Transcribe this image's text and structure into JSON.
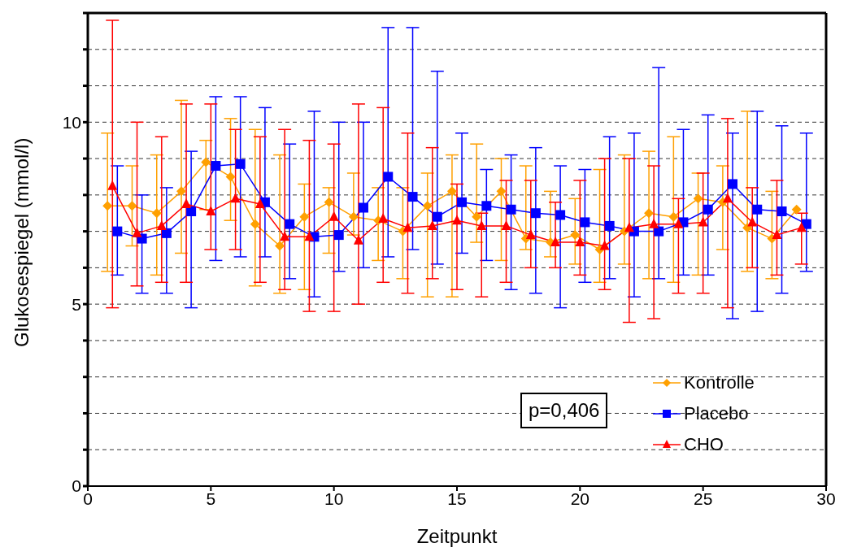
{
  "chart_data": {
    "type": "line",
    "xlabel": "Zeitpunkt",
    "ylabel": "Glukosespiegel (mmol/l)",
    "xlim": [
      0,
      30
    ],
    "xticks": [
      0,
      5,
      10,
      15,
      20,
      25,
      30
    ],
    "ylim": [
      0,
      13
    ],
    "yticks": [
      0,
      {
        "value": 1,
        "label": null
      },
      {
        "value": 2,
        "label": null
      },
      {
        "value": 3,
        "label": null
      },
      {
        "value": 4,
        "label": null
      },
      5,
      {
        "value": 6,
        "label": null
      },
      {
        "value": 7,
        "label": null
      },
      {
        "value": 8,
        "label": null
      },
      {
        "value": 9,
        "label": null
      },
      10,
      {
        "value": 11,
        "label": null
      },
      {
        "value": 12,
        "label": null
      },
      {
        "value": 13,
        "label": null
      }
    ],
    "grid": "y",
    "legend": "bottom right",
    "line_style": "solid",
    "annotations": [
      "p=0,406"
    ],
    "series": [
      {
        "name": "Kontrolle",
        "color": "#ffa000",
        "marker": "diamond",
        "x": [
          0.8,
          1.8,
          2.8,
          3.8,
          4.8,
          5.8,
          6.8,
          7.8,
          8.8,
          9.8,
          10.8,
          11.8,
          12.8,
          13.8,
          14.8,
          15.8,
          16.8,
          17.8,
          18.8,
          19.8,
          20.8,
          21.8,
          22.8,
          23.8,
          24.8,
          25.8,
          26.8,
          27.8,
          28.8
        ],
        "values": [
          7.7,
          7.7,
          7.5,
          8.1,
          8.9,
          8.5,
          7.2,
          6.6,
          7.4,
          7.8,
          7.4,
          7.3,
          7.0,
          7.7,
          8.1,
          7.4,
          8.1,
          6.8,
          6.7,
          6.9,
          6.5,
          7.0,
          7.5,
          7.4,
          7.9,
          7.8,
          7.1,
          6.8,
          7.6
        ],
        "errors": [
          [
            5.9,
            9.7
          ],
          [
            6.6,
            8.8
          ],
          [
            5.8,
            9.1
          ],
          [
            6.4,
            10.6
          ],
          [
            7.6,
            9.5
          ],
          [
            7.3,
            10.1
          ],
          [
            5.5,
            9.8
          ],
          [
            5.3,
            9.1
          ],
          [
            5.4,
            8.3
          ],
          [
            6.4,
            8.2
          ],
          [
            6.9,
            8.6
          ],
          [
            6.2,
            8.2
          ],
          [
            5.7,
            8.2
          ],
          [
            5.2,
            8.6
          ],
          [
            5.2,
            9.1
          ],
          [
            6.7,
            9.4
          ],
          [
            6.2,
            9.0
          ],
          [
            6.5,
            8.8
          ],
          [
            6.3,
            8.1
          ],
          [
            6.1,
            7.9
          ],
          [
            5.6,
            8.7
          ],
          [
            6.1,
            9.1
          ],
          [
            5.7,
            9.2
          ],
          [
            5.6,
            9.6
          ],
          [
            5.8,
            8.6
          ],
          [
            6.5,
            8.8
          ],
          [
            5.9,
            10.3
          ],
          [
            5.7,
            8.1
          ],
          null
        ]
      },
      {
        "name": "Placebo",
        "color": "#0000ff",
        "marker": "square",
        "x": [
          1.2,
          2.2,
          3.2,
          4.2,
          5.2,
          6.2,
          7.2,
          8.2,
          9.2,
          10.2,
          11.2,
          12.2,
          13.2,
          14.2,
          15.2,
          16.2,
          17.2,
          18.2,
          19.2,
          20.2,
          21.2,
          22.2,
          23.2,
          24.2,
          25.2,
          26.2,
          27.2,
          28.2,
          29.2
        ],
        "values": [
          7.0,
          6.8,
          6.95,
          7.55,
          8.8,
          8.85,
          7.8,
          7.2,
          6.85,
          6.9,
          7.65,
          8.5,
          7.95,
          7.4,
          7.8,
          7.7,
          7.6,
          7.5,
          7.45,
          7.25,
          7.15,
          7.0,
          7.0,
          7.25,
          7.6,
          8.3,
          7.6,
          7.55,
          7.2
        ],
        "errors": [
          [
            5.8,
            8.8
          ],
          [
            5.3,
            8.0
          ],
          [
            5.3,
            8.2
          ],
          [
            4.9,
            9.2
          ],
          [
            6.2,
            10.7
          ],
          [
            6.3,
            10.7
          ],
          [
            6.3,
            10.4
          ],
          [
            5.7,
            9.4
          ],
          [
            5.2,
            10.3
          ],
          [
            5.9,
            10.0
          ],
          [
            6.0,
            10.0
          ],
          [
            6.3,
            12.6
          ],
          [
            6.5,
            12.6
          ],
          [
            6.1,
            11.4
          ],
          [
            6.4,
            9.7
          ],
          [
            6.2,
            8.7
          ],
          [
            5.4,
            9.1
          ],
          [
            5.3,
            9.3
          ],
          [
            4.9,
            8.8
          ],
          [
            5.6,
            8.7
          ],
          [
            5.7,
            9.6
          ],
          [
            5.2,
            9.7
          ],
          [
            5.7,
            11.5
          ],
          [
            5.8,
            9.8
          ],
          [
            5.8,
            10.2
          ],
          [
            4.6,
            9.7
          ],
          [
            4.8,
            10.3
          ],
          [
            5.3,
            9.9
          ],
          [
            5.9,
            9.7
          ]
        ]
      },
      {
        "name": "CHO",
        "color": "#ff0000",
        "marker": "triangle",
        "x": [
          1,
          2,
          3,
          4,
          5,
          6,
          7,
          8,
          9,
          10,
          11,
          12,
          13,
          14,
          15,
          16,
          17,
          18,
          19,
          20,
          21,
          22,
          23,
          24,
          25,
          26,
          27,
          28,
          29
        ],
        "values": [
          8.25,
          6.95,
          7.15,
          7.75,
          7.55,
          7.9,
          7.75,
          6.85,
          6.85,
          7.4,
          6.75,
          7.35,
          7.1,
          7.15,
          7.3,
          7.15,
          7.15,
          6.9,
          6.7,
          6.7,
          6.6,
          7.1,
          7.2,
          7.2,
          7.25,
          7.9,
          7.25,
          6.9,
          7.1
        ],
        "errors": [
          [
            4.9,
            12.8
          ],
          [
            5.5,
            10.0
          ],
          [
            5.6,
            9.6
          ],
          [
            5.6,
            10.5
          ],
          [
            6.5,
            10.5
          ],
          [
            6.5,
            9.8
          ],
          [
            5.6,
            9.6
          ],
          [
            5.4,
            9.8
          ],
          [
            4.8,
            9.5
          ],
          [
            4.8,
            9.4
          ],
          [
            5.0,
            10.5
          ],
          [
            5.6,
            10.4
          ],
          [
            5.3,
            9.7
          ],
          [
            5.7,
            9.3
          ],
          [
            5.4,
            8.3
          ],
          [
            5.2,
            7.5
          ],
          [
            5.6,
            8.4
          ],
          [
            6.0,
            8.4
          ],
          [
            6.0,
            7.8
          ],
          [
            5.8,
            8.4
          ],
          [
            5.4,
            9.0
          ],
          [
            4.5,
            9.0
          ],
          [
            4.6,
            8.8
          ],
          [
            5.3,
            7.9
          ],
          [
            5.3,
            8.6
          ],
          [
            4.9,
            10.1
          ],
          [
            6.0,
            8.2
          ],
          [
            5.8,
            8.4
          ],
          [
            6.1,
            7.5
          ]
        ]
      }
    ]
  }
}
